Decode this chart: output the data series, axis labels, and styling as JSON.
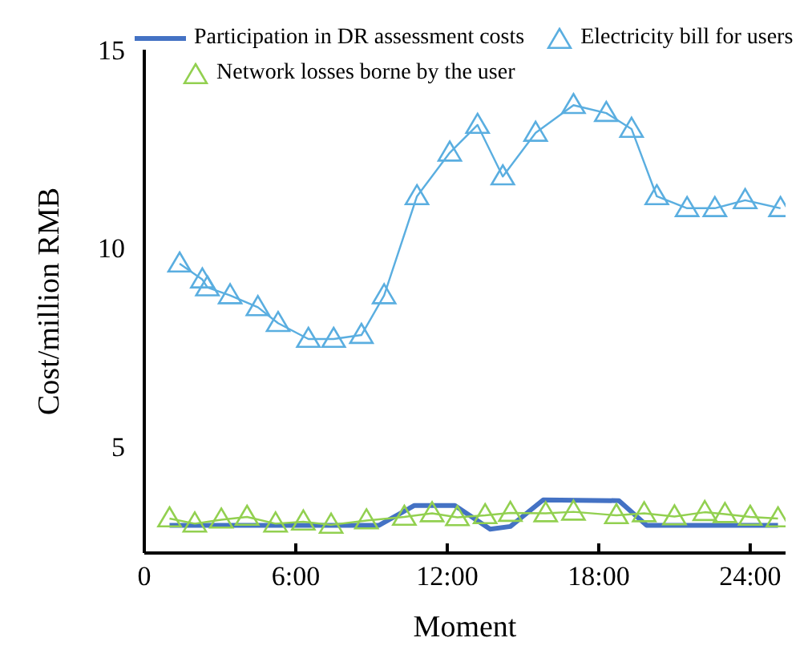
{
  "chart_data": {
    "type": "line",
    "xlabel": "Moment",
    "ylabel": "Cost/million RMB",
    "xlim": [
      0,
      25.4
    ],
    "xticks": [
      0,
      {
        "value": 6,
        "label": "6:00"
      },
      {
        "value": 12,
        "label": "12:00"
      },
      {
        "value": 18,
        "label": "18:00"
      },
      {
        "value": 24,
        "label": "24:00"
      }
    ],
    "ylim": [
      2.3,
      15
    ],
    "yticks": [
      5,
      10,
      15
    ],
    "grid": false,
    "legend": "top",
    "marker": "triangle",
    "series": [
      {
        "name": "Participation in DR assessment costs",
        "color": "#4472c4",
        "marker": "none",
        "x": [
          1,
          9.3,
          10.7,
          12.3,
          13.7,
          14.5,
          15.8,
          18.8,
          19.9,
          25.1
        ],
        "values": [
          3.0,
          3.0,
          3.5,
          3.5,
          2.9,
          2.97,
          3.64,
          3.62,
          3.0,
          3.0
        ]
      },
      {
        "name": "Electricity bill for users",
        "color": "#5aaee0",
        "x": [
          1.4,
          2.3,
          2.5,
          3.4,
          4.5,
          5.3,
          6.5,
          7.5,
          8.6,
          9.5,
          10.8,
          12.1,
          13.2,
          14.2,
          15.5,
          17.0,
          18.3,
          19.3,
          20.3,
          21.5,
          22.6,
          23.8,
          25.2
        ],
        "values": [
          9.6,
          9.2,
          9.0,
          8.8,
          8.5,
          8.1,
          7.7,
          7.7,
          7.8,
          8.8,
          11.3,
          12.4,
          13.1,
          11.8,
          12.9,
          13.6,
          13.4,
          13.0,
          11.3,
          11.0,
          11.0,
          11.2,
          11.0
        ]
      },
      {
        "name": "Network losses borne by the user",
        "color": "#92d050",
        "x": [
          1.0,
          2.0,
          3.05,
          4.07,
          5.2,
          6.3,
          7.4,
          8.8,
          10.3,
          11.4,
          12.4,
          13.5,
          14.5,
          15.9,
          17.0,
          18.7,
          19.8,
          21.0,
          22.2,
          23.0,
          24.0,
          25.1
        ],
        "values": [
          3.17,
          3.04,
          3.14,
          3.21,
          3.04,
          3.09,
          3.01,
          3.12,
          3.21,
          3.3,
          3.2,
          3.25,
          3.31,
          3.3,
          3.34,
          3.25,
          3.3,
          3.22,
          3.33,
          3.28,
          3.21,
          3.17
        ]
      }
    ]
  }
}
